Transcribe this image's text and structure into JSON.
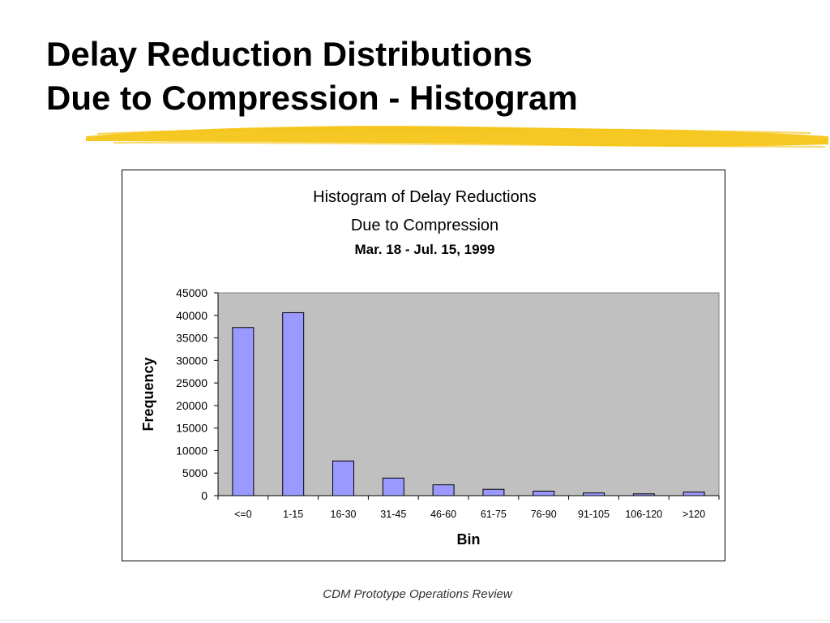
{
  "slide": {
    "title_line1": "Delay Reduction Distributions",
    "title_line2": "Due to Compression - Histogram",
    "footer": "CDM Prototype Operations Review"
  },
  "colors": {
    "plot_area": "#c0c0c0",
    "bar_fill": "#9999ff",
    "bar_stroke": "#000000",
    "highlighter": "#f5c518"
  },
  "chart_data": {
    "type": "bar",
    "title": "Histogram of Delay Reductions",
    "subtitle": "Due to Compression",
    "date_range": "Mar. 18 - Jul. 15, 1999",
    "xlabel": "Bin",
    "ylabel": "Frequency",
    "categories": [
      "<=0",
      "1-15",
      "16-30",
      "31-45",
      "46-60",
      "61-75",
      "76-90",
      "91-105",
      "106-120",
      ">120"
    ],
    "values": [
      37300,
      40600,
      7700,
      3900,
      2400,
      1400,
      1000,
      600,
      400,
      800
    ],
    "ylim": [
      0,
      45000
    ],
    "yticks": [
      0,
      5000,
      10000,
      15000,
      20000,
      25000,
      30000,
      35000,
      40000,
      45000
    ],
    "grid": false,
    "legend": "none"
  }
}
